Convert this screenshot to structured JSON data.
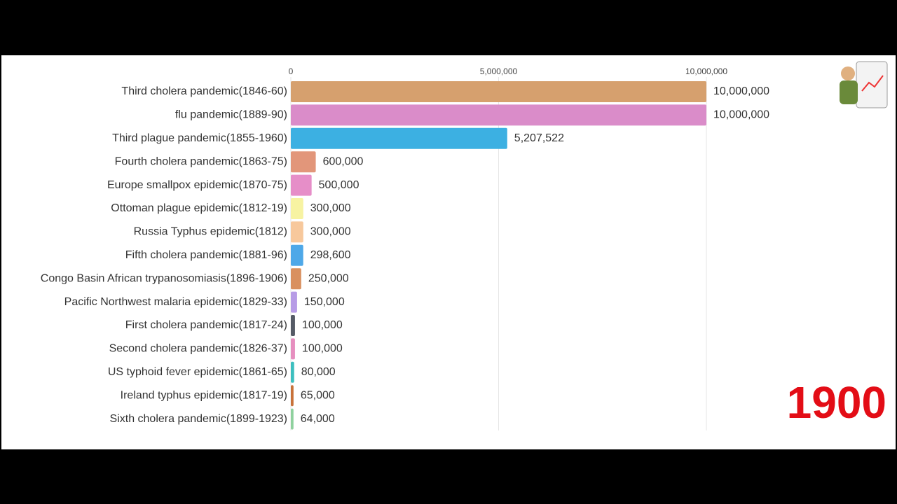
{
  "chart_data": {
    "type": "bar",
    "orientation": "horizontal",
    "categories": [
      "Third cholera pandemic(1846-60)",
      "flu pandemic(1889-90)",
      "Third plague pandemic(1855-1960)",
      "Fourth cholera pandemic(1863-75)",
      "Europe smallpox epidemic(1870-75)",
      "Ottoman plague epidemic(1812-19)",
      "Russia Typhus epidemic(1812)",
      "Fifth cholera pandemic(1881-96)",
      "Congo Basin African trypanosomiasis(1896-1906)",
      "Pacific Northwest malaria epidemic(1829-33)",
      "First cholera pandemic(1817-24)",
      "Second cholera pandemic(1826-37)",
      "US typhoid fever epidemic(1861-65)",
      "Ireland typhus epidemic(1817-19)",
      "Sixth cholera pandemic(1899-1923)"
    ],
    "values": [
      10000000,
      10000000,
      5207522,
      600000,
      500000,
      300000,
      300000,
      298600,
      250000,
      150000,
      100000,
      100000,
      80000,
      65000,
      64000
    ],
    "value_labels": [
      "10,000,000",
      "10,000,000",
      "5,207,522",
      "600,000",
      "500,000",
      "300,000",
      "300,000",
      "298,600",
      "250,000",
      "150,000",
      "100,000",
      "100,000",
      "80,000",
      "65,000",
      "64,000"
    ],
    "colors": [
      "#d6a06e",
      "#da8cc9",
      "#3cb0e2",
      "#e2967a",
      "#e68ec8",
      "#f7f3a2",
      "#f7c89c",
      "#4ea8e8",
      "#d9905f",
      "#b79ce6",
      "#555b66",
      "#e68fbf",
      "#3dbfbf",
      "#c8723a",
      "#8fd19e"
    ],
    "xlim": [
      0,
      10000000
    ],
    "xticks": [
      0,
      {
        "value": 5000000,
        "label": "5,000,000"
      },
      {
        "value": 10000000,
        "label": "10,000,000"
      }
    ],
    "grid": true,
    "year_label": "1900"
  }
}
